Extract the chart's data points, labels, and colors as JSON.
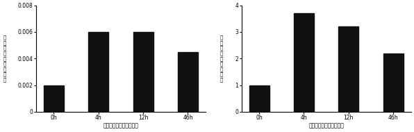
{
  "left_chart": {
    "categories": [
      "0h",
      "4h",
      "12h",
      "46h"
    ],
    "values": [
      0.002,
      0.006,
      0.006,
      0.0045
    ],
    "ylim": [
      0,
      0.008
    ],
    "yticks": [
      0,
      0.002,
      0.004,
      0.006,
      0.008
    ],
    "ytick_labels": [
      "0",
      "0.002",
      "0.004",
      "0.006",
      "0.008"
    ],
    "ylabel_lines": [
      "相",
      "对",
      "目",
      "标",
      "基",
      "因",
      "表",
      "达",
      "量"
    ],
    "xlabel": "进绯爱德华氏菌感染时间",
    "bar_color": "#111111"
  },
  "right_chart": {
    "categories": [
      "0h",
      "4h",
      "12h",
      "46h"
    ],
    "values": [
      1.0,
      3.7,
      3.2,
      2.2
    ],
    "ylim": [
      0,
      4
    ],
    "yticks": [
      0,
      1,
      2,
      3,
      4
    ],
    "ytick_labels": [
      "0",
      "1",
      "2",
      "3",
      "4"
    ],
    "ylabel_lines": [
      "相",
      "对",
      "目",
      "标",
      "基",
      "因",
      "表",
      "达",
      "量"
    ],
    "xlabel": "进绯爱德华氏菌感染时间",
    "bar_color": "#111111"
  },
  "figsize": [
    5.96,
    1.9
  ],
  "dpi": 100
}
